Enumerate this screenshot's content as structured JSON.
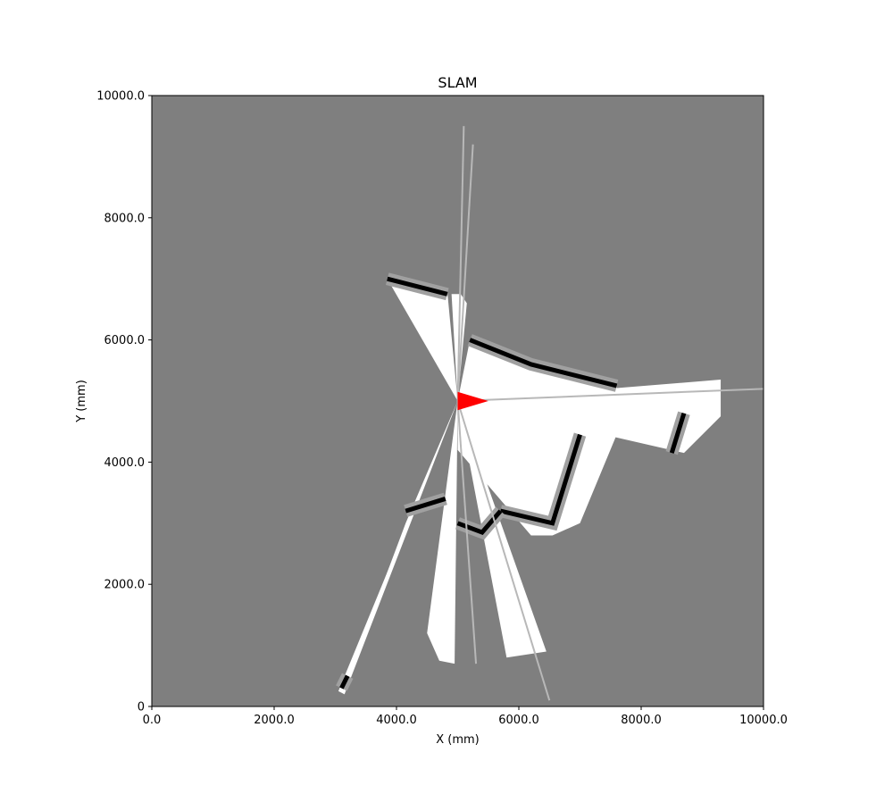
{
  "chart_data": {
    "type": "heatmap",
    "title": "SLAM",
    "xlabel": "X (mm)",
    "ylabel": "Y (mm)",
    "xlim": [
      0,
      10000
    ],
    "ylim": [
      0,
      10000
    ],
    "xticks": [
      0,
      2000,
      4000,
      6000,
      8000,
      10000
    ],
    "yticks": [
      0,
      2000,
      4000,
      6000,
      8000,
      10000
    ],
    "xtick_labels": [
      "0.0",
      "2000.0",
      "4000.0",
      "6000.0",
      "8000.0",
      "10000.0"
    ],
    "ytick_labels": [
      "0",
      "2000.0",
      "4000.0",
      "6000.0",
      "8000.0",
      "10000.0"
    ],
    "grid": false,
    "colors": {
      "unknown": "#7f7f7f",
      "free": "#ffffff",
      "occupied": "#000000",
      "robot": "#ff0000"
    },
    "robot_pose": {
      "x": [
        5000,
        5000,
        5500
      ],
      "y": [
        5150,
        4850,
        5000
      ]
    },
    "free_regions": [
      {
        "x": [
          5000,
          3850,
          4830,
          5000
        ],
        "y": [
          5000,
          7000,
          6800,
          5000
        ]
      },
      {
        "x": [
          5000,
          4900,
          5050,
          5150,
          5000
        ],
        "y": [
          5000,
          6750,
          6750,
          6600,
          5000
        ]
      },
      {
        "x": [
          5000,
          5200,
          7600,
          7600,
          7000,
          6550,
          6200,
          5000
        ],
        "y": [
          5000,
          6000,
          5250,
          4450,
          3000,
          2800,
          2800,
          4200
        ]
      },
      {
        "x": [
          5000,
          9300,
          9300,
          8700,
          5000
        ],
        "y": [
          5000,
          5350,
          4750,
          4150,
          5000
        ]
      },
      {
        "x": [
          5000,
          4150,
          3400,
          5000
        ],
        "y": [
          5000,
          3000,
          1000,
          5000
        ]
      },
      {
        "x": [
          5000,
          4500,
          4700,
          4950,
          5000
        ],
        "y": [
          5000,
          1200,
          750,
          700,
          5000
        ]
      },
      {
        "x": [
          5000,
          5800,
          6450,
          5000
        ],
        "y": [
          5000,
          800,
          900,
          5000
        ]
      },
      {
        "x": [
          5000,
          3050,
          3150,
          5000
        ],
        "y": [
          5000,
          250,
          200,
          5000
        ]
      }
    ],
    "occupied_segments": [
      {
        "x": [
          3850,
          4830
        ],
        "y": [
          7000,
          6750
        ]
      },
      {
        "x": [
          5200,
          6200,
          7600
        ],
        "y": [
          6000,
          5600,
          5250
        ]
      },
      {
        "x": [
          8700,
          8500
        ],
        "y": [
          4800,
          4150
        ]
      },
      {
        "x": [
          7000,
          6550,
          5700
        ],
        "y": [
          4450,
          3000,
          3200
        ]
      },
      {
        "x": [
          5000,
          5400,
          5700
        ],
        "y": [
          3000,
          2850,
          3200
        ]
      },
      {
        "x": [
          4150,
          4800
        ],
        "y": [
          3200,
          3400
        ]
      },
      {
        "x": [
          3100,
          3200
        ],
        "y": [
          300,
          500
        ]
      }
    ],
    "faint_rays": [
      {
        "x": [
          5000,
          5100
        ],
        "y": [
          5000,
          9500
        ]
      },
      {
        "x": [
          5000,
          5250
        ],
        "y": [
          5000,
          9200
        ]
      },
      {
        "x": [
          5000,
          10000
        ],
        "y": [
          5000,
          5200
        ]
      },
      {
        "x": [
          5000,
          6500
        ],
        "y": [
          5000,
          100
        ]
      },
      {
        "x": [
          5000,
          5300
        ],
        "y": [
          5000,
          700
        ]
      }
    ]
  }
}
